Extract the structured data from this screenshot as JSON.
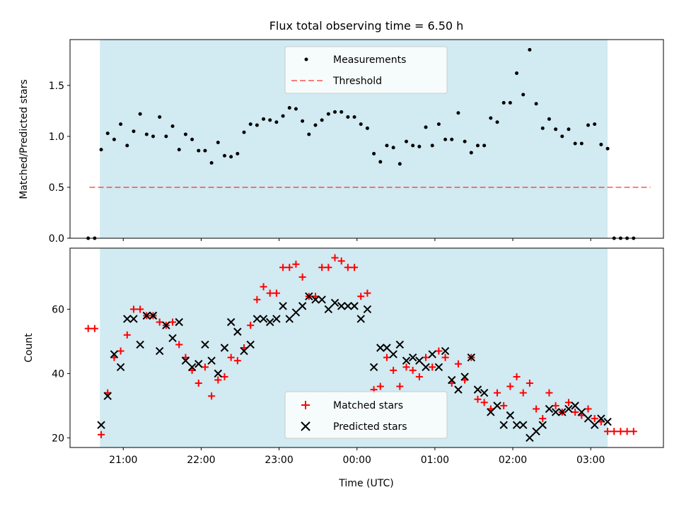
{
  "figure": {
    "title": "Flux total observing time = 6.50 h",
    "xlabel": "Time (UTC)"
  },
  "colors": {
    "shade": "#add8e6",
    "threshold": "#ff0000",
    "matched": "#ff0000",
    "predicted": "#000000",
    "measurements": "#000000"
  },
  "chart_data": [
    {
      "type": "scatter",
      "panel": "top",
      "ylabel": "Matched/Predicted stars",
      "xlim": [
        "20:19",
        "03:56"
      ],
      "ylim": [
        0,
        1.95
      ],
      "yticks": [
        0.0,
        0.5,
        1.0,
        1.5
      ],
      "ytick_labels": [
        "0.0",
        "0.5",
        "1.0",
        "1.5"
      ],
      "xticks": [
        "21:00",
        "22:00",
        "23:00",
        "00:00",
        "01:00",
        "02:00",
        "03:00"
      ],
      "observing_window": [
        "20:42",
        "03:13"
      ],
      "threshold": {
        "value": 0.5,
        "x_range": [
          "20:34",
          "03:46"
        ]
      },
      "legend": {
        "position": "upper center",
        "entries": [
          "Measurements",
          "Threshold"
        ]
      },
      "series": [
        {
          "name": "Measurements",
          "marker": "dot",
          "x": [
            "20:33",
            "20:38",
            "20:43",
            "20:48",
            "20:53",
            "20:58",
            "21:03",
            "21:08",
            "21:13",
            "21:18",
            "21:23",
            "21:28",
            "21:33",
            "21:38",
            "21:43",
            "21:48",
            "21:53",
            "21:58",
            "22:03",
            "22:08",
            "22:13",
            "22:18",
            "22:23",
            "22:28",
            "22:33",
            "22:38",
            "22:43",
            "22:48",
            "22:53",
            "22:58",
            "23:03",
            "23:08",
            "23:13",
            "23:18",
            "23:23",
            "23:28",
            "23:33",
            "23:38",
            "23:43",
            "23:48",
            "23:53",
            "23:58",
            "00:03",
            "00:08",
            "00:13",
            "00:18",
            "00:23",
            "00:28",
            "00:33",
            "00:38",
            "00:43",
            "00:48",
            "00:53",
            "00:58",
            "01:03",
            "01:08",
            "01:13",
            "01:18",
            "01:23",
            "01:28",
            "01:33",
            "01:38",
            "01:43",
            "01:48",
            "01:53",
            "01:58",
            "02:03",
            "02:08",
            "02:13",
            "02:18",
            "02:23",
            "02:28",
            "02:33",
            "02:38",
            "02:43",
            "02:48",
            "02:53",
            "02:58",
            "03:03",
            "03:08",
            "03:13",
            "03:18",
            "03:23",
            "03:28",
            "03:33"
          ],
          "y": [
            0.0,
            0.0,
            0.87,
            1.03,
            0.97,
            1.12,
            0.91,
            1.05,
            1.22,
            1.02,
            1.0,
            1.19,
            1.0,
            1.1,
            0.87,
            1.02,
            0.97,
            0.86,
            0.86,
            0.74,
            0.94,
            0.81,
            0.8,
            0.83,
            1.04,
            1.12,
            1.11,
            1.17,
            1.16,
            1.14,
            1.2,
            1.28,
            1.27,
            1.15,
            1.02,
            1.11,
            1.16,
            1.22,
            1.24,
            1.24,
            1.19,
            1.19,
            1.12,
            1.08,
            0.83,
            0.75,
            0.91,
            0.89,
            0.73,
            0.95,
            0.91,
            0.9,
            1.09,
            0.91,
            1.12,
            0.97,
            0.97,
            1.23,
            0.95,
            0.84,
            0.91,
            0.91,
            1.18,
            1.14,
            1.33,
            1.33,
            1.62,
            1.41,
            1.85,
            1.32,
            1.08,
            1.17,
            1.07,
            1.0,
            1.07,
            0.93,
            0.93,
            1.11,
            1.12,
            0.92,
            0.88,
            0.0,
            0.0,
            0.0,
            0.0
          ]
        }
      ]
    },
    {
      "type": "scatter",
      "panel": "bottom",
      "ylabel": "Count",
      "xlabel": "Time (UTC)",
      "xlim": [
        "20:19",
        "03:56"
      ],
      "ylim": [
        17,
        79
      ],
      "yticks": [
        20,
        40,
        60
      ],
      "ytick_labels": [
        "20",
        "40",
        "60"
      ],
      "xticks": [
        "21:00",
        "22:00",
        "23:00",
        "00:00",
        "01:00",
        "02:00",
        "03:00"
      ],
      "xtick_labels": [
        "21:00",
        "22:00",
        "23:00",
        "00:00",
        "01:00",
        "02:00",
        "03:00"
      ],
      "observing_window": [
        "20:42",
        "03:13"
      ],
      "legend": {
        "position": "lower center",
        "entries": [
          "Matched stars",
          "Predicted stars"
        ]
      },
      "series": [
        {
          "name": "Matched stars",
          "marker": "plus",
          "x": [
            "20:33",
            "20:38",
            "20:43",
            "20:48",
            "20:53",
            "20:58",
            "21:03",
            "21:08",
            "21:13",
            "21:18",
            "21:23",
            "21:28",
            "21:33",
            "21:38",
            "21:43",
            "21:48",
            "21:53",
            "21:58",
            "22:03",
            "22:08",
            "22:13",
            "22:18",
            "22:23",
            "22:28",
            "22:33",
            "22:38",
            "22:43",
            "22:48",
            "22:53",
            "22:58",
            "23:03",
            "23:08",
            "23:13",
            "23:18",
            "23:23",
            "23:28",
            "23:33",
            "23:38",
            "23:43",
            "23:48",
            "23:53",
            "23:58",
            "00:03",
            "00:08",
            "00:13",
            "00:18",
            "00:23",
            "00:28",
            "00:33",
            "00:38",
            "00:43",
            "00:48",
            "00:53",
            "00:58",
            "01:03",
            "01:08",
            "01:13",
            "01:18",
            "01:23",
            "01:28",
            "01:33",
            "01:38",
            "01:43",
            "01:48",
            "01:53",
            "01:58",
            "02:03",
            "02:08",
            "02:13",
            "02:18",
            "02:23",
            "02:28",
            "02:33",
            "02:38",
            "02:43",
            "02:48",
            "02:53",
            "02:58",
            "03:03",
            "03:08",
            "03:13",
            "03:18",
            "03:23",
            "03:28",
            "03:33"
          ],
          "y": [
            54,
            54,
            21,
            34,
            45,
            47,
            52,
            60,
            60,
            58,
            58,
            56,
            55,
            56,
            49,
            45,
            41,
            37,
            42,
            33,
            38,
            39,
            45,
            44,
            48,
            55,
            63,
            67,
            65,
            65,
            73,
            73,
            74,
            70,
            64,
            64,
            73,
            73,
            76,
            75,
            73,
            73,
            64,
            65,
            35,
            36,
            45,
            41,
            36,
            42,
            41,
            39,
            45,
            42,
            47,
            45,
            37,
            43,
            38,
            45,
            32,
            31,
            29,
            34,
            30,
            36,
            39,
            34,
            37,
            29,
            26,
            34,
            30,
            28,
            31,
            28,
            27,
            29,
            26,
            25,
            22,
            22,
            22,
            22,
            22
          ]
        },
        {
          "name": "Predicted stars",
          "marker": "x",
          "x": [
            "20:43",
            "20:48",
            "20:53",
            "20:58",
            "21:03",
            "21:08",
            "21:13",
            "21:18",
            "21:23",
            "21:28",
            "21:33",
            "21:38",
            "21:43",
            "21:48",
            "21:53",
            "21:58",
            "22:03",
            "22:08",
            "22:13",
            "22:18",
            "22:23",
            "22:28",
            "22:33",
            "22:38",
            "22:43",
            "22:48",
            "22:53",
            "22:58",
            "23:03",
            "23:08",
            "23:13",
            "23:18",
            "23:23",
            "23:28",
            "23:33",
            "23:38",
            "23:43",
            "23:48",
            "23:53",
            "23:58",
            "00:03",
            "00:08",
            "00:13",
            "00:18",
            "00:23",
            "00:28",
            "00:33",
            "00:38",
            "00:43",
            "00:48",
            "00:53",
            "00:58",
            "01:03",
            "01:08",
            "01:13",
            "01:18",
            "01:23",
            "01:28",
            "01:33",
            "01:38",
            "01:43",
            "01:48",
            "01:53",
            "01:58",
            "02:03",
            "02:08",
            "02:13",
            "02:18",
            "02:23",
            "02:28",
            "02:33",
            "02:38",
            "02:43",
            "02:48",
            "02:53",
            "02:58",
            "03:03",
            "03:08",
            "03:13"
          ],
          "y": [
            24,
            33,
            46,
            42,
            57,
            57,
            49,
            58,
            58,
            47,
            55,
            51,
            56,
            44,
            42,
            43,
            49,
            44,
            40,
            48,
            56,
            53,
            47,
            49,
            57,
            57,
            56,
            57,
            61,
            57,
            59,
            61,
            64,
            63,
            63,
            60,
            62,
            61,
            61,
            61,
            57,
            60,
            42,
            48,
            48,
            46,
            49,
            44,
            45,
            44,
            42,
            46,
            42,
            47,
            38,
            35,
            39,
            45,
            35,
            34,
            28,
            30,
            24,
            27,
            24,
            24,
            20,
            22,
            24,
            29,
            28,
            28,
            29,
            30,
            28,
            26,
            24,
            26,
            25
          ]
        }
      ]
    }
  ]
}
